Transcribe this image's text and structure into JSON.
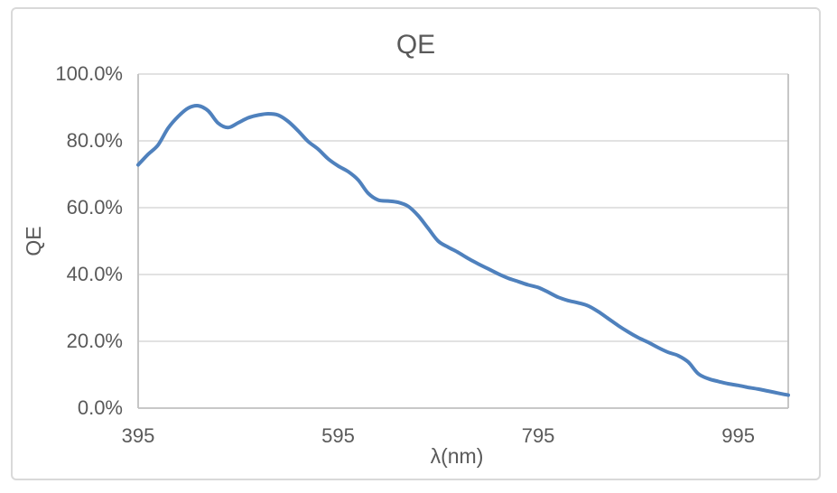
{
  "chart": {
    "title": "QE",
    "x_axis_title": "λ(nm)",
    "y_axis_title": "QE"
  },
  "colors": {
    "line": "#4f81bd",
    "gridline": "#d9d9d9",
    "axis_line": "#c0c0c0",
    "text": "#595959",
    "frame_border": "#d9d9d9",
    "background": "#ffffff"
  },
  "chart_data": {
    "type": "line",
    "smooth": true,
    "title": "QE",
    "xlabel": "λ(nm)",
    "ylabel": "QE",
    "x_unit": "nm",
    "y_unit": "percent",
    "xlim": [
      395,
      1045
    ],
    "ylim_percent": [
      0,
      100
    ],
    "grid": "horizontal",
    "legend": "none",
    "x": [
      395,
      405,
      415,
      425,
      435,
      445,
      455,
      465,
      475,
      485,
      495,
      505,
      515,
      525,
      535,
      545,
      555,
      565,
      575,
      585,
      595,
      605,
      615,
      625,
      635,
      645,
      655,
      665,
      675,
      685,
      695,
      705,
      715,
      725,
      735,
      745,
      755,
      765,
      775,
      785,
      795,
      805,
      815,
      825,
      835,
      845,
      855,
      865,
      875,
      885,
      895,
      905,
      915,
      925,
      935,
      945,
      955,
      965,
      975,
      985,
      995,
      1005,
      1015,
      1025,
      1035,
      1045
    ],
    "values_percent": [
      72.8,
      76.0,
      78.8,
      83.8,
      87.3,
      89.8,
      90.5,
      89.0,
      85.3,
      84.0,
      85.4,
      86.9,
      87.7,
      88.1,
      87.7,
      85.8,
      83.0,
      79.8,
      77.5,
      74.6,
      72.5,
      70.8,
      68.3,
      64.3,
      62.3,
      62.0,
      61.6,
      60.4,
      57.6,
      53.8,
      50.0,
      48.2,
      46.6,
      44.8,
      43.2,
      41.7,
      40.2,
      38.9,
      37.9,
      36.9,
      36.1,
      34.7,
      33.2,
      32.2,
      31.5,
      30.6,
      28.9,
      26.8,
      24.7,
      22.8,
      21.1,
      19.7,
      18.1,
      16.7,
      15.7,
      13.8,
      10.3,
      8.8,
      8.0,
      7.3,
      6.8,
      6.2,
      5.7,
      5.1,
      4.5,
      3.9
    ],
    "x_ticks": [
      {
        "label": "395",
        "value": 395
      },
      {
        "label": "595",
        "value": 595
      },
      {
        "label": "795",
        "value": 795
      },
      {
        "label": "995",
        "value": 995
      }
    ],
    "y_ticks": [
      {
        "label": "0.0%",
        "value": 0
      },
      {
        "label": "20.0%",
        "value": 20
      },
      {
        "label": "40.0%",
        "value": 40
      },
      {
        "label": "60.0%",
        "value": 60
      },
      {
        "label": "80.0%",
        "value": 80
      },
      {
        "label": "100.0%",
        "value": 100
      }
    ]
  }
}
